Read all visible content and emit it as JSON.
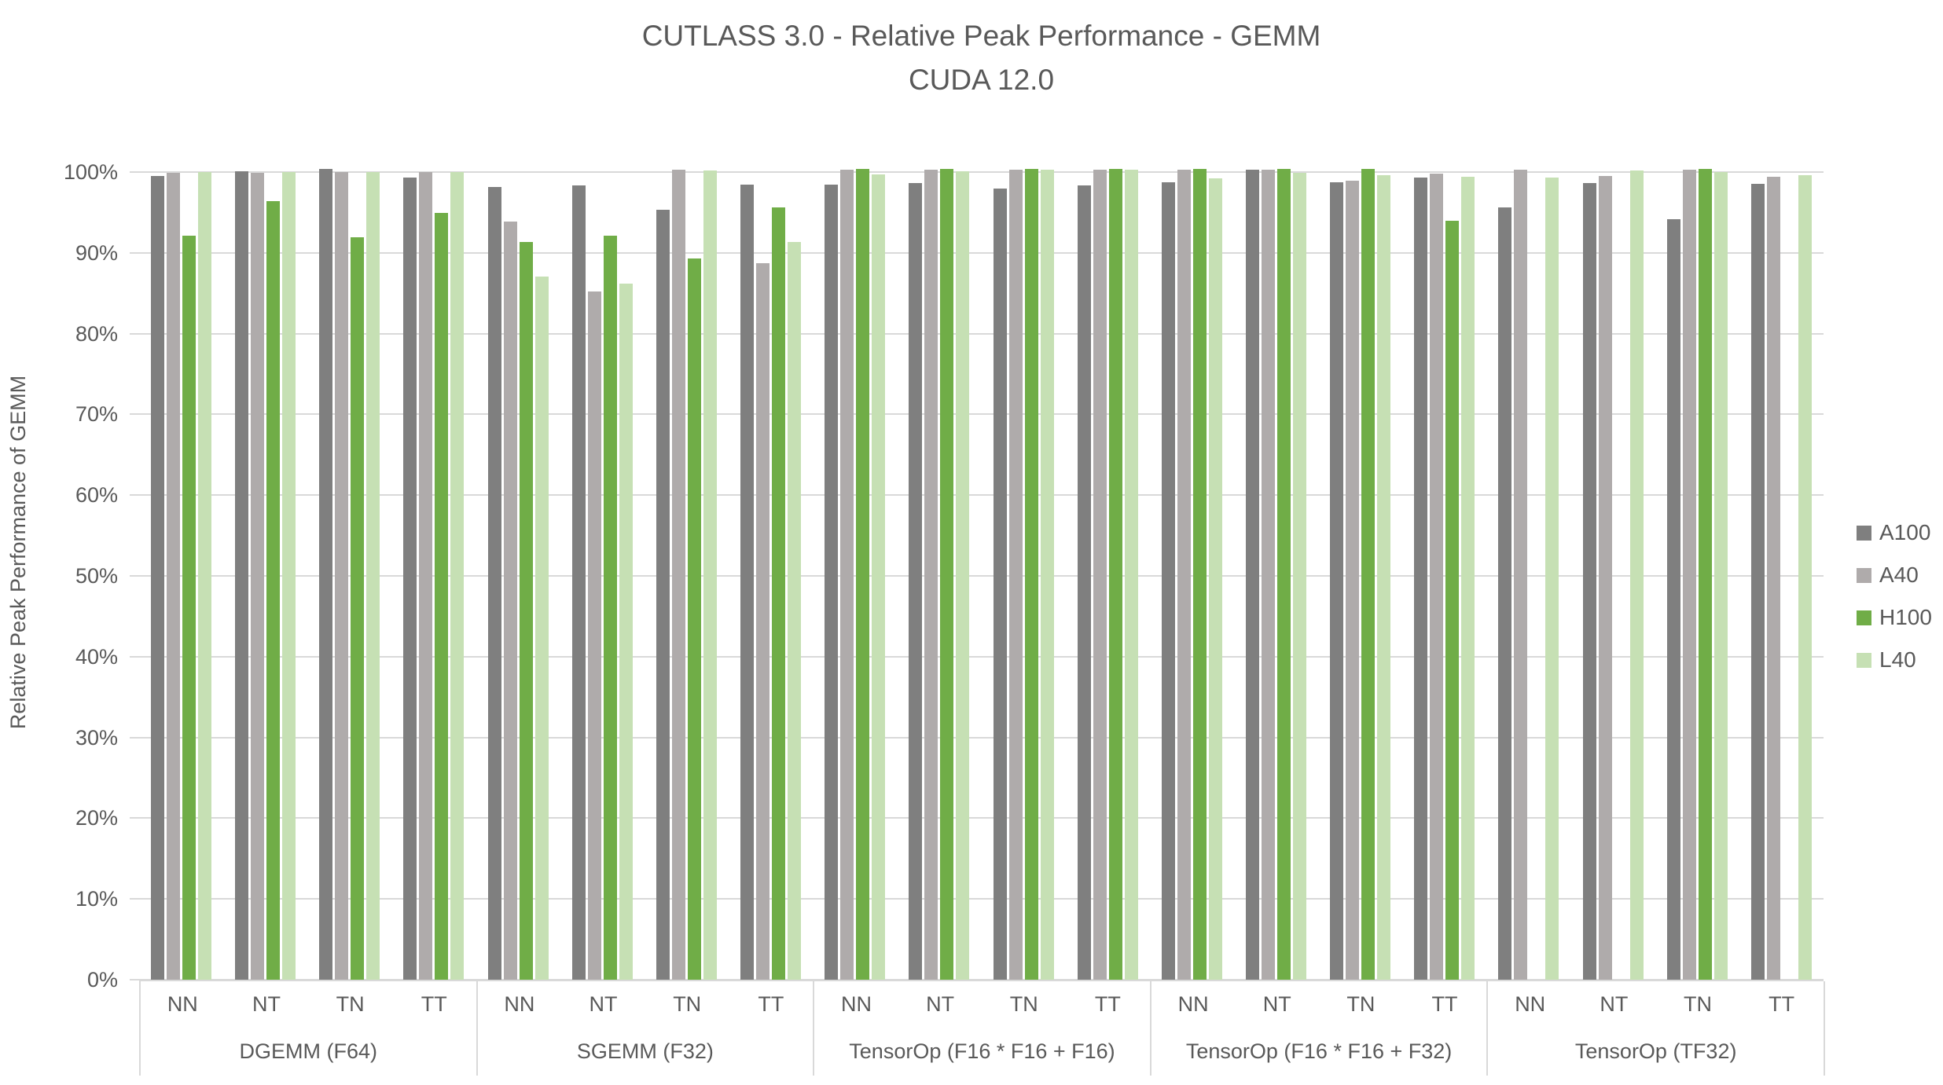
{
  "title": {
    "line1": "CUTLASS 3.0 - Relative Peak Performance - GEMM",
    "line2": "CUDA 12.0"
  },
  "y_axis": {
    "title": "Relative Peak Performance of GEMM",
    "ticks": [
      "0%",
      "10%",
      "20%",
      "30%",
      "40%",
      "50%",
      "60%",
      "70%",
      "80%",
      "90%",
      "100%"
    ]
  },
  "legend": {
    "entries": [
      {
        "label": "A100",
        "color": "#7F7F7F"
      },
      {
        "label": "A40",
        "color": "#AFABAB"
      },
      {
        "label": "H100",
        "color": "#70AD47"
      },
      {
        "label": "L40",
        "color": "#C6E0B4"
      }
    ]
  },
  "colors": {
    "gridline": "#D9D9D9",
    "axis_border": "#D9D9D9",
    "text": "#595959"
  },
  "chart_data": {
    "type": "bar",
    "title": "CUTLASS 3.0 - Relative Peak Performance - GEMM",
    "subtitle": "CUDA 12.0",
    "xlabel": "",
    "ylabel": "Relative Peak Performance of GEMM",
    "unit": "%",
    "ylim": [
      0,
      100
    ],
    "grid": true,
    "legend_position": "right",
    "series_names": [
      "A100",
      "A40",
      "H100",
      "L40"
    ],
    "series_colors": {
      "A100": "#7F7F7F",
      "A40": "#AFABAB",
      "H100": "#70AD47",
      "L40": "#C6E0B4"
    },
    "categories": [
      "NN",
      "NT",
      "TN",
      "TT"
    ],
    "groups": [
      {
        "label": "DGEMM (F64)",
        "series": {
          "A100": [
            99.5,
            100.1,
            100.4,
            99.3
          ],
          "A40": [
            99.9,
            99.9,
            100.0,
            100.0
          ],
          "H100": [
            92.1,
            96.4,
            91.9,
            94.9
          ],
          "L40": [
            100.0,
            100.0,
            100.0,
            100.0
          ]
        }
      },
      {
        "label": "SGEMM (F32)",
        "series": {
          "A100": [
            98.2,
            98.3,
            95.3,
            98.4
          ],
          "A40": [
            93.9,
            85.2,
            100.3,
            88.7
          ],
          "H100": [
            91.3,
            92.1,
            89.3,
            95.6
          ],
          "L40": [
            87.1,
            86.2,
            100.2,
            91.3
          ]
        }
      },
      {
        "label": "TensorOp (F16 * F16 + F16)",
        "series": {
          "A100": [
            98.4,
            98.6,
            98.0,
            98.3
          ],
          "A40": [
            100.3,
            100.3,
            100.3,
            100.3
          ],
          "H100": [
            100.4,
            100.4,
            100.4,
            100.4
          ],
          "L40": [
            99.7,
            100.1,
            100.3,
            100.3
          ]
        }
      },
      {
        "label": "TensorOp (F16 * F16 + F32)",
        "series": {
          "A100": [
            98.7,
            100.3,
            98.7,
            99.3
          ],
          "A40": [
            100.3,
            100.3,
            98.9,
            99.8
          ],
          "H100": [
            100.4,
            100.4,
            100.4,
            94.0
          ],
          "L40": [
            99.2,
            99.9,
            99.6,
            99.4
          ]
        }
      },
      {
        "label": "TensorOp (TF32)",
        "series": {
          "A100": [
            95.6,
            98.6,
            94.2,
            98.5
          ],
          "A40": [
            100.3,
            99.5,
            100.3,
            99.4
          ],
          "H100": [
            null,
            null,
            100.4,
            null
          ],
          "L40": [
            99.3,
            100.2,
            100.0,
            99.6
          ]
        }
      }
    ]
  }
}
